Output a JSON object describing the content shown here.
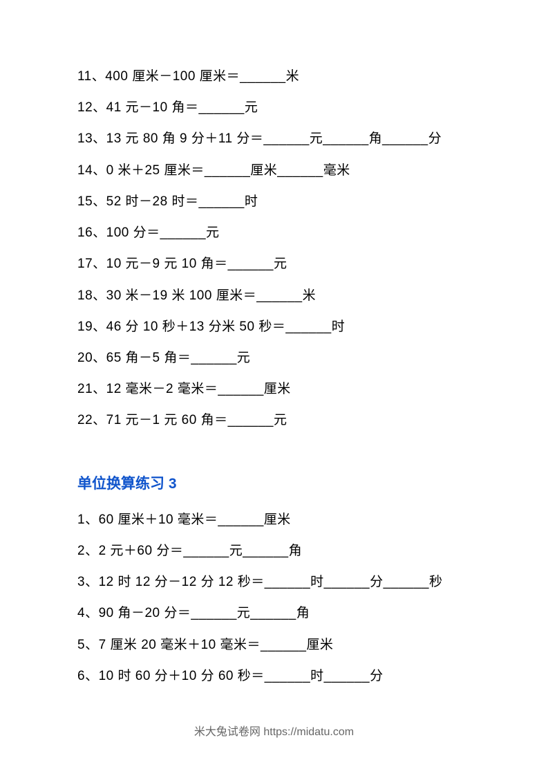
{
  "section1": {
    "questions": [
      "11、400 厘米－100 厘米＝______米",
      "12、41 元－10 角＝______元",
      "13、13 元 80 角 9 分＋11 分＝______元______角______分",
      "14、0 米＋25 厘米＝______厘米______毫米",
      "15、52 时－28 时＝______时",
      "16、100 分＝______元",
      "17、10 元－9 元 10 角＝______元",
      "18、30 米－19 米 100 厘米＝______米",
      "19、46 分 10 秒＋13 分米 50 秒＝______时",
      "20、65 角－5 角＝______元",
      "21、12 毫米－2 毫米＝______厘米",
      "22、71 元－1 元 60 角＝______元"
    ]
  },
  "section2": {
    "title": "单位换算练习 3",
    "questions": [
      "1、60 厘米＋10 毫米＝______厘米",
      "2、2 元＋60 分＝______元______角",
      "3、12 时 12 分－12 分 12 秒＝______时______分______秒",
      "4、90 角－20 分＝______元______角",
      "5、7 厘米 20 毫米＋10 毫米＝______厘米",
      "6、10 时 60 分＋10 分 60 秒＝______时______分"
    ]
  },
  "footer": {
    "text": "米大兔试卷网 https://midatu.com"
  }
}
